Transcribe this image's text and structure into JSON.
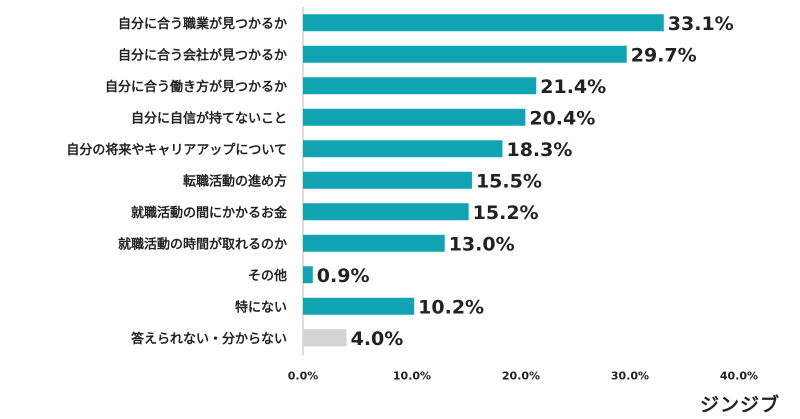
{
  "brand": "ジンジブ",
  "chart_data": {
    "type": "bar",
    "orientation": "horizontal",
    "categories": [
      "自分に合う職業が見つかるか",
      "自分に合う会社が見つかるか",
      "自分に合う働き方が見つかるか",
      "自分に自信が持てないこと",
      "自分の将来やキャリアアップについて",
      "転職活動の進め方",
      "就職活動の間にかかるお金",
      "就職活動の時間が取れるのか",
      "その他",
      "特にない",
      "答えられない・分からない"
    ],
    "values": [
      33.1,
      29.7,
      21.4,
      20.4,
      18.3,
      15.5,
      15.2,
      13.0,
      0.9,
      10.2,
      4.0
    ],
    "value_labels": [
      "33.1%",
      "29.7%",
      "21.4%",
      "20.4%",
      "18.3%",
      "15.5%",
      "15.2%",
      "13.0%",
      "0.9%",
      "10.2%",
      "4.0%"
    ],
    "xlim": [
      0,
      40
    ],
    "ticks": [
      "0.0%",
      "10.0%",
      "20.0%",
      "30.0%",
      "40.0%"
    ],
    "tick_values": [
      0,
      10,
      20,
      30,
      40
    ],
    "colors": {
      "bar": "#12a3b3",
      "bar_muted": "#d4d4d4",
      "axis": "#bbbbbb"
    },
    "muted_indices": [
      10
    ],
    "title": "",
    "xlabel": "",
    "ylabel": ""
  }
}
